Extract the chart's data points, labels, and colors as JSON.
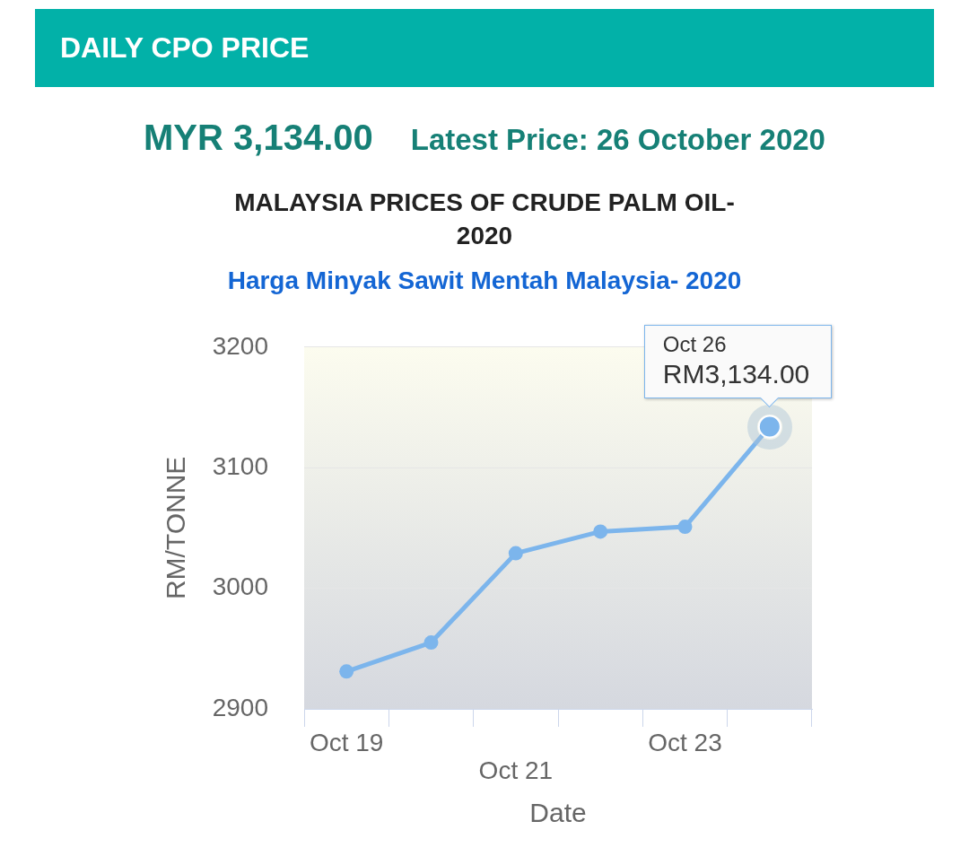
{
  "chart_data": {
    "type": "line",
    "title": "MALAYSIA PRICES OF CRUDE PALM OIL-2020",
    "subtitle": "Harga Minyak Sawit Mentah Malaysia- 2020",
    "xlabel": "Date",
    "ylabel": "RM/TONNE",
    "annotations": [
      "DAILY CPO PRICE",
      "MYR 3,134.00",
      "Latest Price: 26 October 2020",
      "Oct 26",
      "RM3,134.00"
    ],
    "categories": [
      "Oct 19",
      null,
      "Oct 21",
      null,
      "Oct 23",
      null
    ],
    "series": [
      {
        "color": "#7cb5ec",
        "values": [
          2931,
          2955,
          3029,
          3047,
          3051,
          3134
        ]
      }
    ],
    "ylim": [
      2900,
      3200
    ],
    "yticks": [
      2900,
      3000,
      3100,
      3200
    ],
    "grid": "y",
    "legend": false,
    "marker": "circle",
    "line_style": "solid"
  }
}
